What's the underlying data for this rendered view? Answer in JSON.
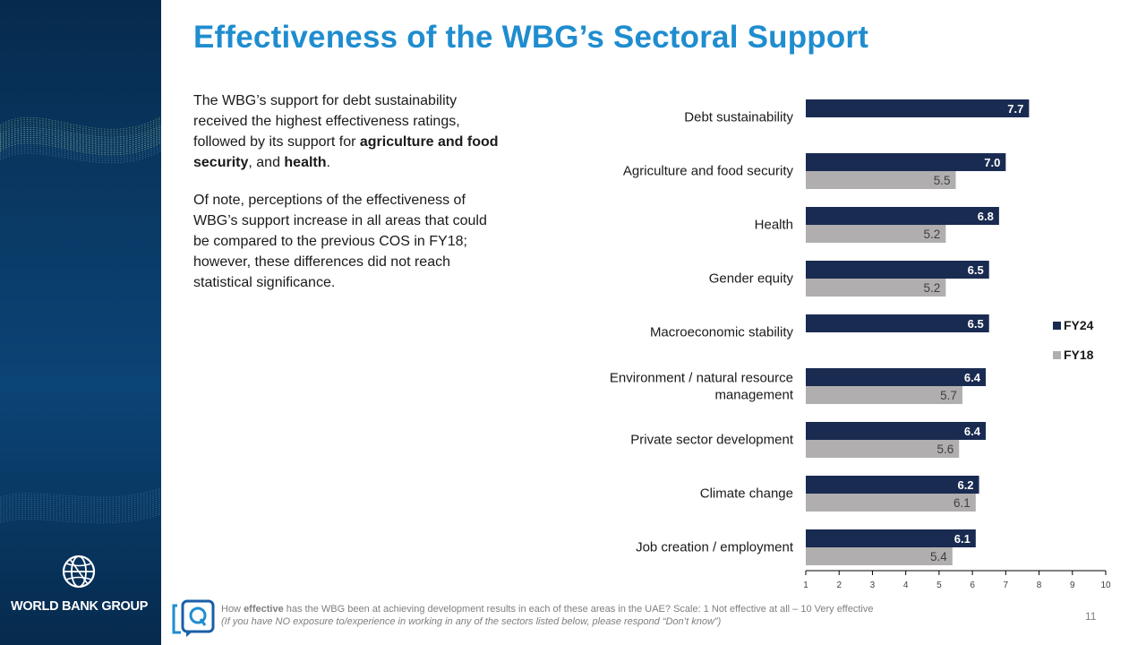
{
  "brand": {
    "name": "WORLD BANK GROUP",
    "navy": "#1a2b52",
    "grey": "#b0aeae",
    "title_blue": "#1f8dcf"
  },
  "title": "Effectiveness of the WBG’s Sectoral Support",
  "body": {
    "p1_a": "The WBG’s support for debt sustainability received the highest effectiveness ratings, followed by its support for ",
    "p1_b": "agriculture and food security",
    "p1_c": ", and ",
    "p1_d": "health",
    "p1_e": ".",
    "p2": "Of note, perceptions of the effectiveness of WBG’s support increase in all areas that could be compared to the previous COS in FY18; however, these differences did not reach statistical significance."
  },
  "chart_data": {
    "type": "bar",
    "orientation": "horizontal",
    "categories": [
      "Debt sustainability",
      "Agriculture and food security",
      "Health",
      "Gender equity",
      "Macroeconomic stability",
      "Environment / natural resource management",
      "Private sector development",
      "Climate change",
      "Job creation / employment"
    ],
    "category_lines": [
      [
        "Debt sustainability"
      ],
      [
        "Agriculture and food security"
      ],
      [
        "Health"
      ],
      [
        "Gender equity"
      ],
      [
        "Macroeconomic stability"
      ],
      [
        "Environment / natural resource",
        "management"
      ],
      [
        "Private sector development"
      ],
      [
        "Climate change"
      ],
      [
        "Job creation / employment"
      ]
    ],
    "series": [
      {
        "name": "FY24",
        "color": "#1a2b52",
        "values": [
          7.7,
          7.0,
          6.8,
          6.5,
          6.5,
          6.4,
          6.4,
          6.2,
          6.1
        ]
      },
      {
        "name": "FY18",
        "color": "#b0aeae",
        "values": [
          null,
          5.5,
          5.2,
          5.2,
          null,
          5.7,
          5.6,
          6.1,
          5.4
        ]
      }
    ],
    "xlim": [
      1,
      10
    ],
    "xticks": [
      1,
      2,
      3,
      4,
      5,
      6,
      7,
      8,
      9,
      10
    ],
    "grid": false,
    "legend_position": "right"
  },
  "footer": {
    "q_a": "How ",
    "q_b": "effective",
    "q_c": " has the WBG been at achieving development results in each of these areas in the UAE? Scale: 1 Not effective at all – 10 Very effective",
    "note": "(If you have NO exposure to/experience in working in any of the sectors listed below, please respond “Don’t know”)",
    "page_number": "11"
  }
}
